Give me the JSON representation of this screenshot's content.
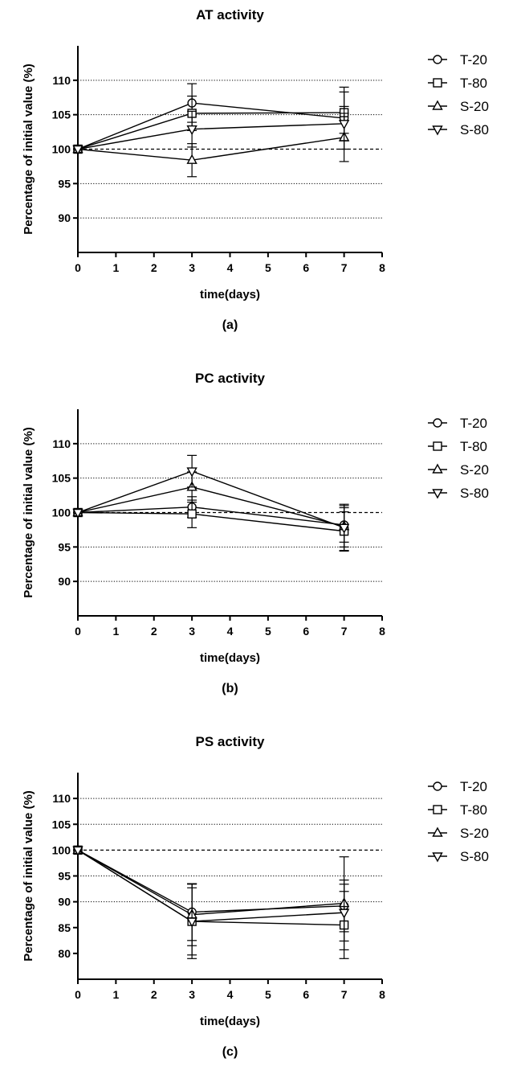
{
  "chart_data": [
    {
      "type": "line",
      "panel": "a",
      "title": "AT activity",
      "caption": "(a)",
      "xlabel": "time(days)",
      "ylabel": "Percentage of initial value (%)",
      "xlim": [
        0,
        8
      ],
      "ylim": [
        85,
        115
      ],
      "xticks": [
        0,
        1,
        2,
        3,
        4,
        5,
        6,
        7,
        8
      ],
      "yticks": [
        90,
        95,
        100,
        105,
        110
      ],
      "dotted_gridlines": [
        90,
        95,
        105,
        110
      ],
      "dashed_reference": 100,
      "x": [
        0,
        3,
        7
      ],
      "series": [
        {
          "name": "T-20",
          "marker": "circle",
          "values": [
            100,
            106.7,
            104.5
          ],
          "errors": [
            0,
            2.8,
            4.5
          ]
        },
        {
          "name": "T-80",
          "marker": "square",
          "values": [
            100,
            105.2,
            105.3
          ],
          "errors": [
            0,
            2.5,
            3.0
          ]
        },
        {
          "name": "S-20",
          "marker": "triangle-up",
          "values": [
            100,
            98.4,
            101.7
          ],
          "errors": [
            0,
            2.4,
            3.5
          ]
        },
        {
          "name": "S-80",
          "marker": "triangle-down",
          "values": [
            100,
            102.9,
            103.7
          ],
          "errors": [
            0,
            2.6,
            2.5
          ]
        }
      ]
    },
    {
      "type": "line",
      "panel": "b",
      "title": "PC activity",
      "caption": "(b)",
      "xlabel": "time(days)",
      "ylabel": "Percentage of initial value (%)",
      "xlim": [
        0,
        8
      ],
      "ylim": [
        85,
        115
      ],
      "xticks": [
        0,
        1,
        2,
        3,
        4,
        5,
        6,
        7,
        8
      ],
      "yticks": [
        90,
        95,
        100,
        105,
        110
      ],
      "dotted_gridlines": [
        90,
        95,
        105,
        110
      ],
      "dashed_reference": 100,
      "x": [
        0,
        3,
        7
      ],
      "series": [
        {
          "name": "T-20",
          "marker": "circle",
          "values": [
            100,
            100.8,
            98.2
          ],
          "errors": [
            0,
            1.5,
            2.5
          ]
        },
        {
          "name": "T-80",
          "marker": "square",
          "values": [
            100,
            99.8,
            97.3
          ],
          "errors": [
            0,
            2.0,
            2.8
          ]
        },
        {
          "name": "S-20",
          "marker": "triangle-up",
          "values": [
            100,
            103.7,
            98.0
          ],
          "errors": [
            0,
            2.2,
            3.0
          ]
        },
        {
          "name": "S-80",
          "marker": "triangle-down",
          "values": [
            100,
            106.0,
            97.8
          ],
          "errors": [
            0,
            2.3,
            3.4
          ]
        }
      ]
    },
    {
      "type": "line",
      "panel": "c",
      "title": "PS activity",
      "caption": "(c)",
      "xlabel": "time(days)",
      "ylabel": "Percentage of initial value (%)",
      "xlim": [
        0,
        8
      ],
      "ylim": [
        75,
        115
      ],
      "xticks": [
        0,
        1,
        2,
        3,
        4,
        5,
        6,
        7,
        8
      ],
      "yticks": [
        80,
        85,
        90,
        95,
        100,
        105,
        110
      ],
      "dotted_gridlines": [
        90,
        95,
        105,
        110
      ],
      "dashed_reference": 100,
      "x": [
        0,
        3,
        7
      ],
      "series": [
        {
          "name": "T-20",
          "marker": "circle",
          "values": [
            100,
            88.0,
            89.2
          ],
          "errors": [
            0,
            5.5,
            5.0
          ]
        },
        {
          "name": "T-80",
          "marker": "square",
          "values": [
            100,
            86.2,
            85.5
          ],
          "errors": [
            0,
            7.2,
            6.5
          ]
        },
        {
          "name": "S-20",
          "marker": "triangle-up",
          "values": [
            100,
            87.5,
            89.7
          ],
          "errors": [
            0,
            6.0,
            9.0
          ]
        },
        {
          "name": "S-80",
          "marker": "triangle-down",
          "values": [
            100,
            86.2,
            87.9
          ],
          "errors": [
            0,
            6.5,
            5.5
          ]
        }
      ]
    }
  ]
}
